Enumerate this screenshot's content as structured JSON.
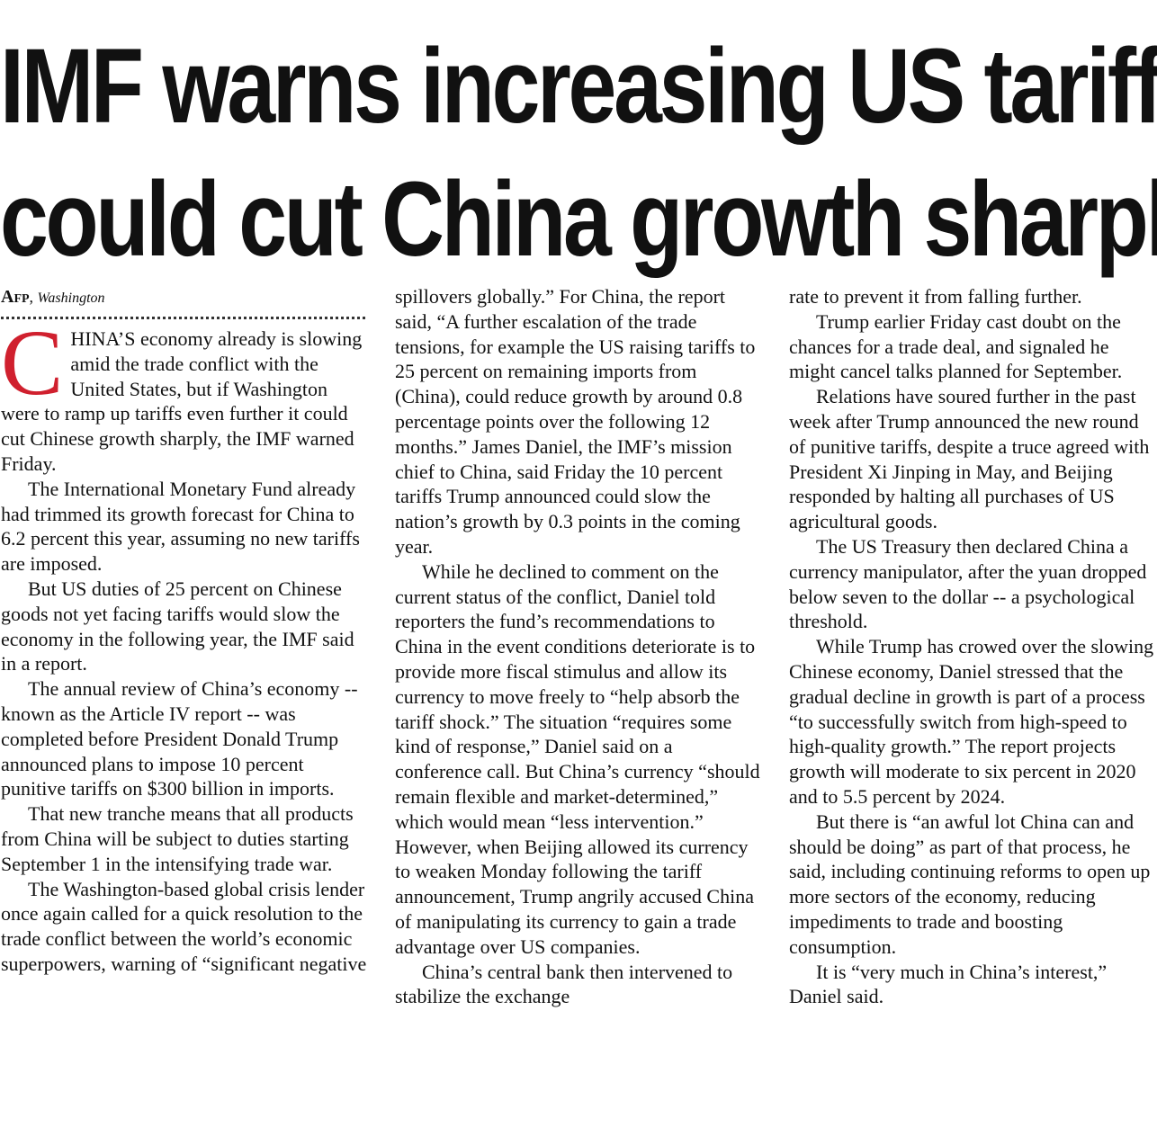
{
  "headline": {
    "line1": "IMF warns increasing US tariffs",
    "line2": "could cut China growth sharply"
  },
  "byline": {
    "agency": "Afp",
    "location": "Washington"
  },
  "article": {
    "dropcap": "C",
    "col1": {
      "p1": "HINA’S economy already is slowing amid the trade conflict with the United States, but if Washington were to ramp up tariffs even further it could cut Chinese growth sharply, the IMF warned Friday.",
      "p2": "The International Monetary Fund already had trimmed its growth forecast for China to 6.2 percent this year, assuming no new tariffs are imposed.",
      "p3": "But US duties of 25 percent on Chinese goods not yet facing tariffs would slow the economy in the following year, the IMF said in a report.",
      "p4": "The annual review of China’s economy -- known as the Article IV report -- was completed before President Donald Trump announced plans to impose 10 percent punitive tariffs on $300 billion in imports.",
      "p5": "That new tranche means that all products from China will be subject to duties starting September 1 in the intensifying trade war.",
      "p6": "The Washington-based global crisis lender once again called for a quick resolution to the trade conflict between the world’s economic superpowers, warning of “significant negative"
    },
    "col2": {
      "p1": "spillovers globally.” For China, the report said, “A further escalation of the trade tensions, for example the US raising tariffs to 25 percent on remaining imports from (China), could reduce growth by around 0.8 percentage points over the following 12 months.” James Daniel, the IMF’s mission chief to China, said Friday the 10 percent tariffs Trump announced could slow the nation’s growth by 0.3 points in the coming year.",
      "p2": "While he declined to comment on the current status of the conflict, Daniel told reporters the fund’s recommendations to China in the event conditions deteriorate is to provide more fiscal stimulus and allow its currency to move freely to “help absorb the tariff shock.” The situation “requires some kind of response,” Daniel said on a conference call. But China’s currency “should remain flexible and market-determined,” which would mean “less intervention.” However, when Beijing allowed its currency to weaken Monday following the tariff announcement, Trump angrily accused China of manipulating its currency to gain a trade advantage over US companies.",
      "p3": "China’s central bank then intervened to stabilize the exchange"
    },
    "col3": {
      "p1": "rate to prevent it from falling further.",
      "p2": "Trump earlier Friday cast doubt on the chances for a trade deal, and signaled he might cancel talks planned for September.",
      "p3": "Relations have soured further in the past week after Trump announced the new round of punitive tariffs, despite a truce agreed with President Xi Jinping in May, and Beijing responded by halting all purchases of US agricultural goods.",
      "p4": "The US Treasury then declared China a currency manipulator, after the yuan dropped below seven to the dollar -- a psychological threshold.",
      "p5": "While Trump has crowed over the slowing Chinese economy, Daniel stressed that the gradual decline in growth is part of a process “to successfully switch from high-speed to high-quality growth.” The report projects growth will moderate to six percent in 2020 and to 5.5 percent by 2024.",
      "p6": "But there is “an awful lot China can and should be doing” as part of that process, he said, including continuing reforms to open up more sectors of the economy, reducing impediments to trade and boosting consumption.",
      "p7": "It is “very much in China’s interest,” Daniel said."
    }
  }
}
